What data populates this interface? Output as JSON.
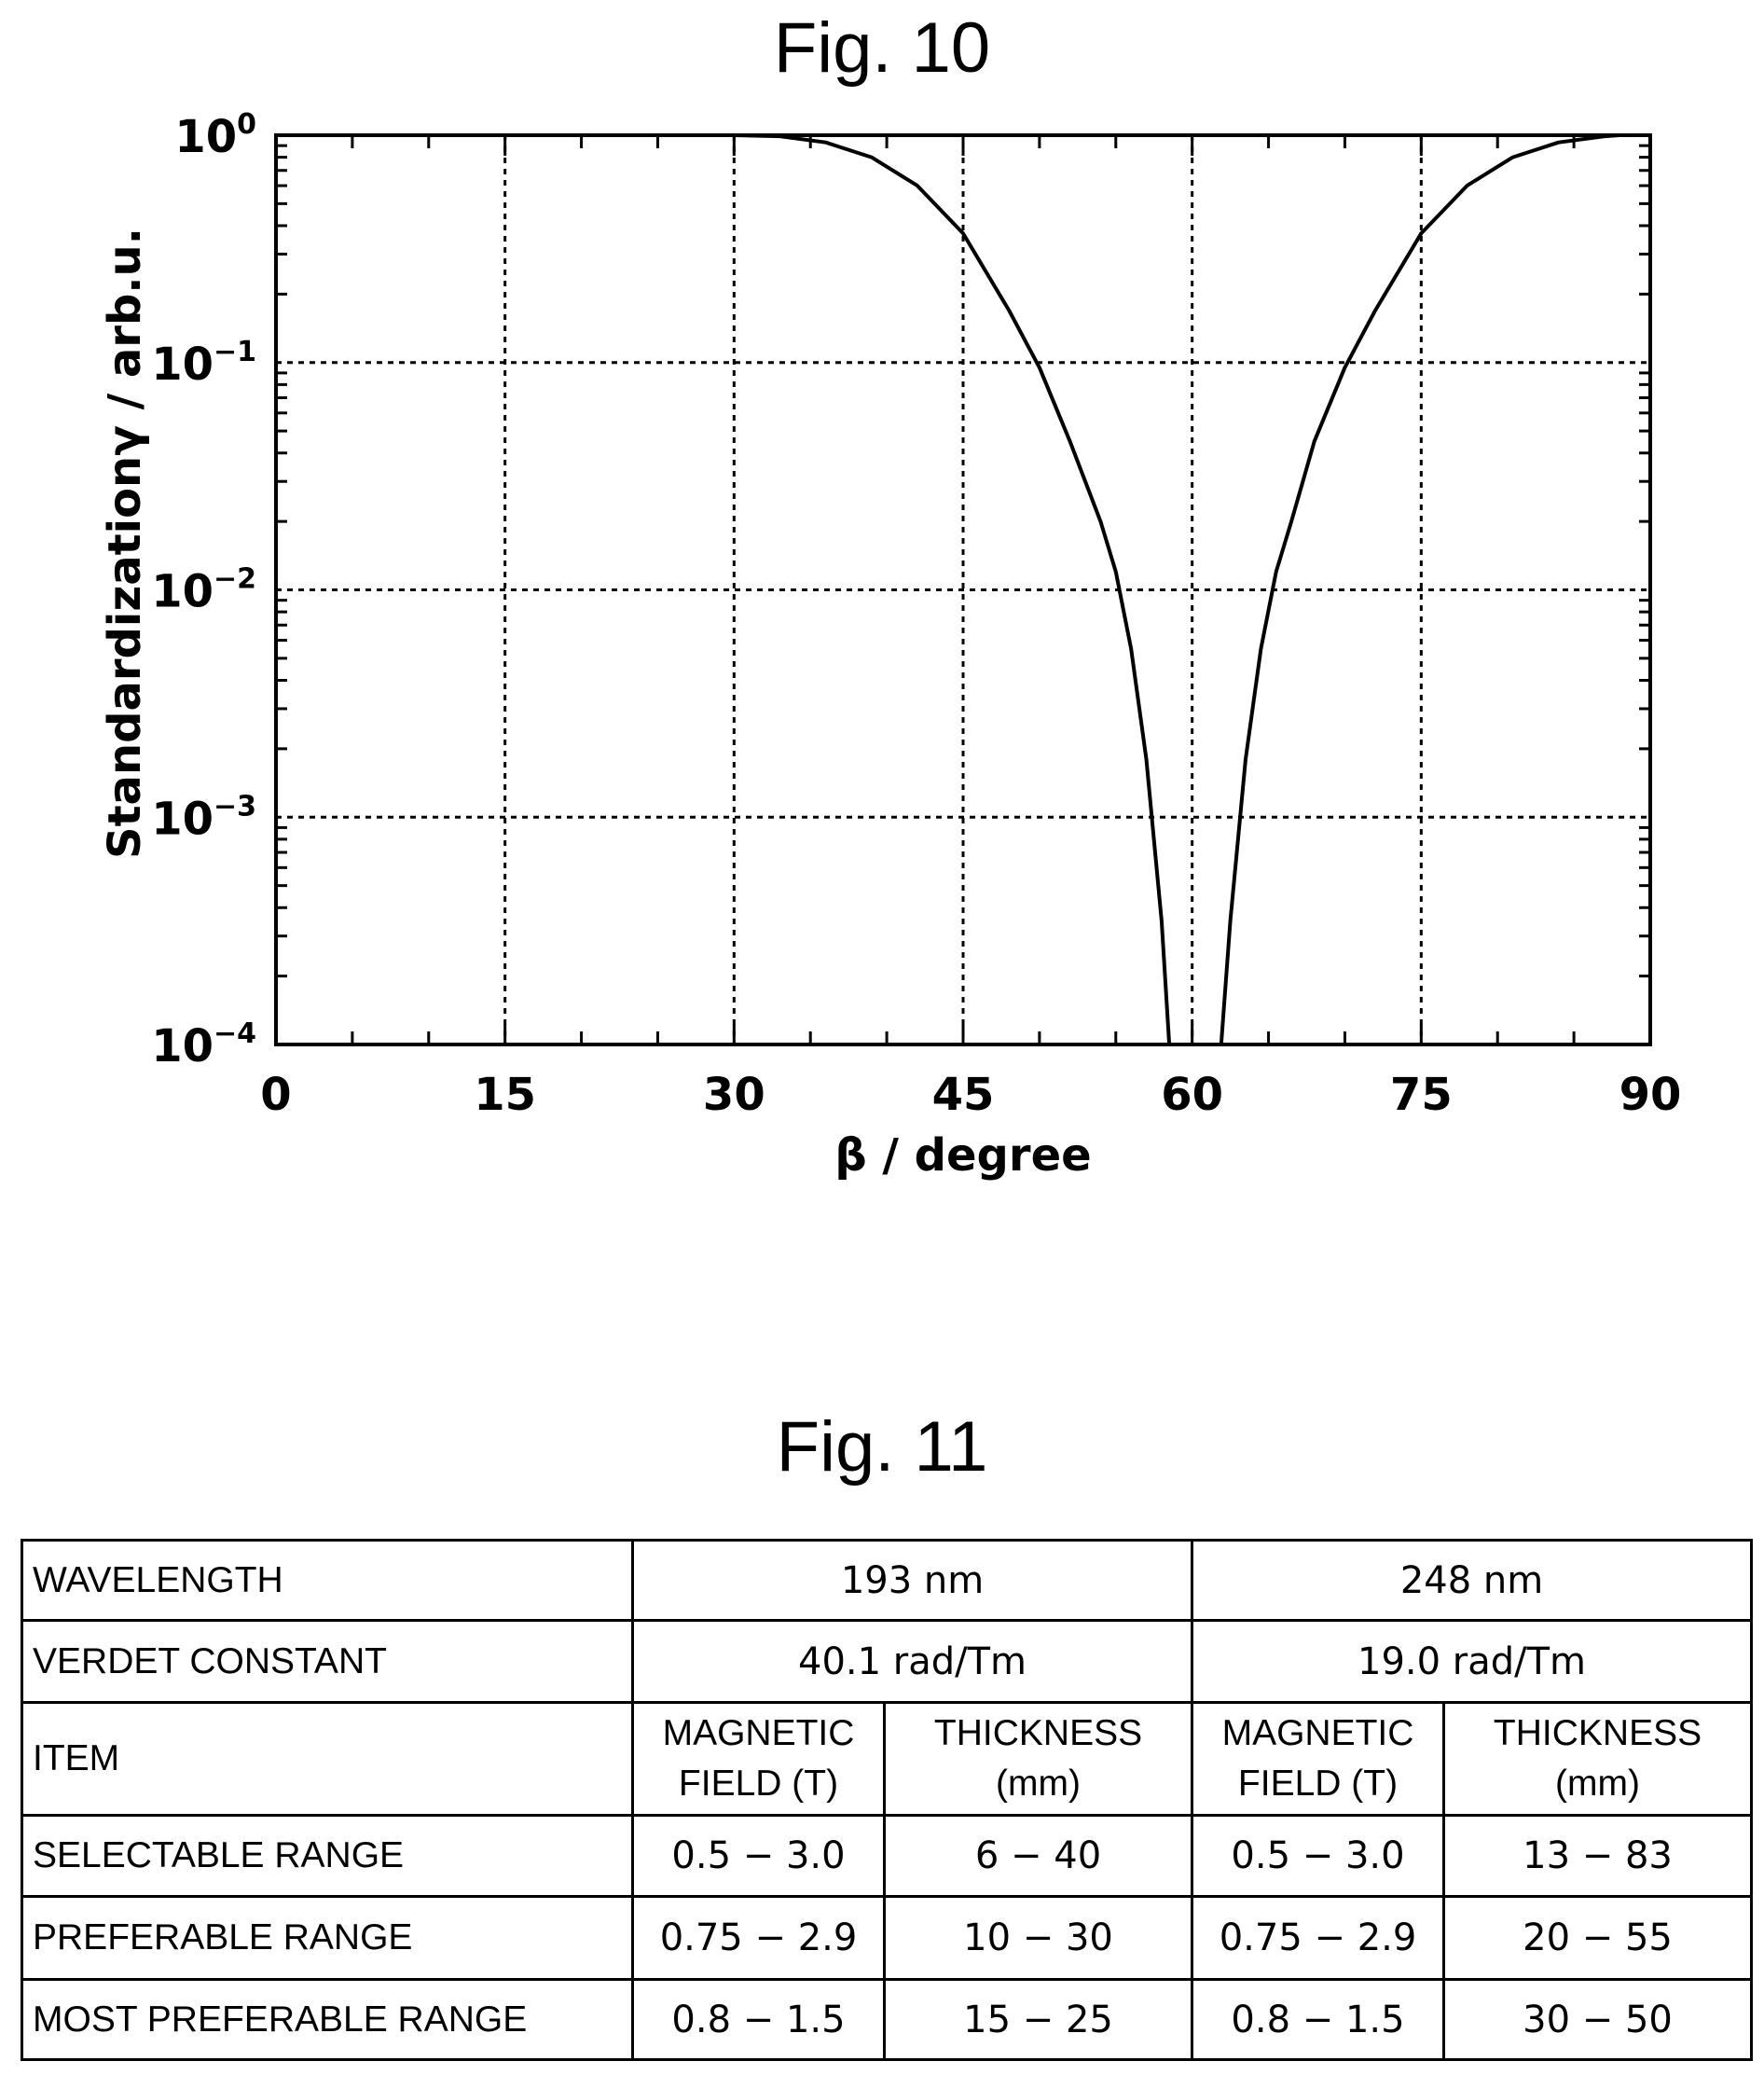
{
  "fig10": {
    "title": "Fig. 10"
  },
  "chart_data": {
    "type": "line",
    "xlabel": "β / degree",
    "ylabel": "Standardizationγ / arb.u.",
    "xlim": [
      0,
      90
    ],
    "ylim": [
      0.0001,
      1
    ],
    "y_scale": "log",
    "grid": true,
    "x_ticks": [
      0,
      15,
      30,
      45,
      60,
      75,
      90
    ],
    "y_ticks": [
      {
        "base": "10",
        "exp": "0",
        "value": 1
      },
      {
        "base": "10",
        "exp": "−1",
        "value": 0.1
      },
      {
        "base": "10",
        "exp": "−2",
        "value": 0.01
      },
      {
        "base": "10",
        "exp": "−3",
        "value": 0.001
      },
      {
        "base": "10",
        "exp": "−4",
        "value": 0.0001
      }
    ],
    "series": [
      {
        "points": [
          [
            0,
            1
          ],
          [
            30,
            1
          ],
          [
            33,
            0.99
          ],
          [
            36,
            0.93
          ],
          [
            39,
            0.8
          ],
          [
            42,
            0.6
          ],
          [
            45,
            0.37
          ],
          [
            48,
            0.17
          ],
          [
            50,
            0.095
          ],
          [
            52,
            0.045
          ],
          [
            54,
            0.02
          ],
          [
            55,
            0.012
          ],
          [
            56,
            0.0055
          ],
          [
            57,
            0.0018
          ],
          [
            58,
            0.00035
          ],
          [
            58.5,
            0.0001
          ]
        ]
      },
      {
        "points": [
          [
            61.9,
            0.0001
          ],
          [
            62.5,
            0.00035
          ],
          [
            63.5,
            0.0018
          ],
          [
            64.5,
            0.0055
          ],
          [
            65.5,
            0.012
          ],
          [
            66.5,
            0.02
          ],
          [
            68,
            0.045
          ],
          [
            70,
            0.095
          ],
          [
            72,
            0.17
          ],
          [
            75,
            0.37
          ],
          [
            78,
            0.6
          ],
          [
            81,
            0.8
          ],
          [
            84,
            0.93
          ],
          [
            87,
            0.99
          ],
          [
            88,
            1
          ],
          [
            90,
            1
          ]
        ]
      }
    ]
  },
  "fig11": {
    "title": "Fig. 11",
    "table": {
      "rows": [
        {
          "label": "WAVELENGTH",
          "col193": "193 nm",
          "col248": "248 nm"
        },
        {
          "label": "VERDET CONSTANT",
          "col193": "40.1 rad/Tm",
          "col248": "19.0 rad/Tm"
        },
        {
          "label": "ITEM",
          "h1a": "MAGNETIC",
          "h1b": "FIELD (T)",
          "h2a": "THICKNESS",
          "h2b": "(mm)",
          "h3a": "MAGNETIC",
          "h3b": "FIELD (T)",
          "h4a": "THICKNESS",
          "h4b": "(mm)"
        },
        {
          "label": "SELECTABLE RANGE",
          "c1": "0.5 − 3.0",
          "c2": "6 − 40",
          "c3": "0.5 − 3.0",
          "c4": "13 − 83"
        },
        {
          "label": "PREFERABLE RANGE",
          "c1": "0.75 − 2.9",
          "c2": "10 − 30",
          "c3": "0.75 − 2.9",
          "c4": "20 − 55"
        },
        {
          "label": "MOST PREFERABLE RANGE",
          "c1": "0.8 − 1.5",
          "c2": "15 − 25",
          "c3": "0.8 − 1.5",
          "c4": "30 − 50"
        }
      ]
    }
  }
}
